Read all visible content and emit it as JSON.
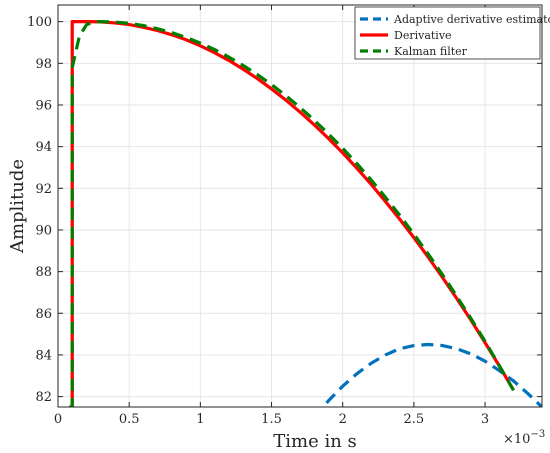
{
  "chart_data": {
    "type": "line",
    "xlabel": "Time in s",
    "ylabel": "Amplitude",
    "x_exponent_label": "×10",
    "x_exponent_power": "−3",
    "xlim": [
      0,
      0.0034
    ],
    "ylim": [
      81.5,
      100.8
    ],
    "grid": true,
    "legend_position": "top-right",
    "x_ticks": [
      0,
      0.0005,
      0.001,
      0.0015,
      0.002,
      0.0025,
      0.003
    ],
    "x_tick_labels": [
      "0",
      "0.5",
      "1",
      "1.5",
      "2",
      "2.5",
      "3"
    ],
    "y_ticks": [
      82,
      84,
      86,
      88,
      90,
      92,
      94,
      96,
      98,
      100
    ],
    "y_tick_labels": [
      "82",
      "84",
      "86",
      "88",
      "90",
      "92",
      "94",
      "96",
      "98",
      "100"
    ],
    "series": [
      {
        "name": "Adaptive derivative estimator",
        "color": "#0072BD",
        "dash": "dashed",
        "x": [
          0.0018,
          0.0019,
          0.002,
          0.0021,
          0.0022,
          0.0023,
          0.0024,
          0.0025,
          0.0026,
          0.0027,
          0.0028,
          0.0029,
          0.003,
          0.0031,
          0.0032,
          0.0033,
          0.0034
        ],
        "values": [
          81.0,
          81.8,
          82.5,
          83.1,
          83.6,
          84.0,
          84.3,
          84.45,
          84.5,
          84.45,
          84.3,
          84.05,
          83.7,
          83.25,
          82.75,
          82.15,
          81.5
        ]
      },
      {
        "name": "Derivative",
        "color": "#FF0000",
        "dash": "solid",
        "x": [
          8e-05,
          0.0001,
          0.0001,
          0.0002,
          0.0003,
          0.0004,
          0.0005,
          0.0006,
          0.0007,
          0.0008,
          0.0009,
          0.001,
          0.0011,
          0.0012,
          0.0013,
          0.0014,
          0.0015,
          0.0016,
          0.0017,
          0.0018,
          0.0019,
          0.002,
          0.0021,
          0.0022,
          0.0023,
          0.0024,
          0.0025,
          0.0026,
          0.0027,
          0.0028,
          0.0029,
          0.003,
          0.0031,
          0.0032
        ],
        "values": [
          81.5,
          81.5,
          100.0,
          100.0,
          99.99,
          99.94,
          99.86,
          99.73,
          99.57,
          99.37,
          99.13,
          98.84,
          98.51,
          98.14,
          97.72,
          97.27,
          96.77,
          96.24,
          95.66,
          95.05,
          94.39,
          93.7,
          92.96,
          92.19,
          91.37,
          90.52,
          89.63,
          88.7,
          87.73,
          86.72,
          85.68,
          84.59,
          83.47,
          82.31
        ]
      },
      {
        "name": "Kalman filter",
        "color": "#008000",
        "dash": "dashed",
        "x": [
          8e-05,
          0.0001,
          0.0001,
          0.00015,
          0.0002,
          0.00025,
          0.0003,
          0.0004,
          0.0005,
          0.0006,
          0.0007,
          0.0008,
          0.0009,
          0.001,
          0.0011,
          0.0012,
          0.0013,
          0.0014,
          0.0015,
          0.0016,
          0.0017,
          0.0018,
          0.0019,
          0.002,
          0.0021,
          0.0022,
          0.0023,
          0.0024,
          0.0025,
          0.0026,
          0.0027,
          0.0028,
          0.0029,
          0.003,
          0.0031,
          0.0032
        ],
        "values": [
          81.5,
          81.5,
          97.8,
          99.3,
          99.85,
          100.0,
          100.0,
          99.98,
          99.92,
          99.81,
          99.66,
          99.47,
          99.24,
          98.97,
          98.66,
          98.3,
          97.9,
          97.46,
          96.98,
          96.45,
          95.88,
          95.27,
          94.61,
          93.92,
          93.18,
          92.4,
          91.57,
          90.71,
          89.8,
          88.85,
          87.86,
          86.83,
          85.76,
          84.65,
          83.49,
          82.3
        ]
      }
    ]
  }
}
